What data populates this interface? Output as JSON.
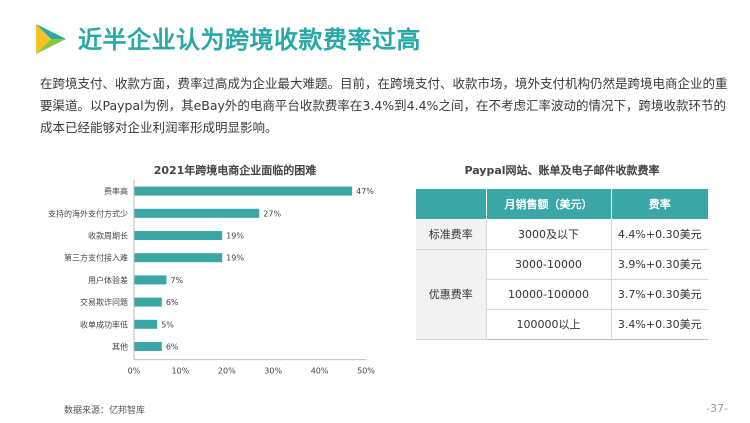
{
  "header": {
    "title": "近半企业认为跨境收款费率过高",
    "logo_colors": {
      "yellow": "#f5c324",
      "teal": "#2aa7a7",
      "green": "#8cc63f"
    }
  },
  "intro": "在跨境支付、收款方面，费率过高成为企业最大难题。目前，在跨境支付、收款市场，境外支付机构仍然是跨境电商企业的重要渠道。以Paypal为例，其eBay外的电商平台收款费率在3.4%到4.4%之间，在不考虑汇率波动的情况下，跨境收款环节的成本已经能够对企业利润率形成明显影响。",
  "chart_data": {
    "type": "bar",
    "orientation": "horizontal",
    "title": "2021年跨境电商企业面临的困难",
    "categories": [
      "费率高",
      "支持的海外支付方式少",
      "收款周期长",
      "第三方支付接入难",
      "用户体验差",
      "交易欺诈问题",
      "收单成功率低",
      "其他"
    ],
    "values": [
      47,
      27,
      19,
      19,
      7,
      6,
      5,
      6
    ],
    "value_labels": [
      "47%",
      "27%",
      "19%",
      "19%",
      "7%",
      "6%",
      "5%",
      "6%"
    ],
    "xlim": [
      0,
      50
    ],
    "xticks": [
      "0%",
      "10%",
      "20%",
      "30%",
      "40%",
      "50%"
    ],
    "xlabel": "",
    "ylabel": "",
    "grid": false,
    "bar_color": "#3aa6a6"
  },
  "table": {
    "title": "Paypal网站、账单及电子邮件收款费率",
    "headers": [
      "",
      "月销售额（美元）",
      "费率"
    ],
    "tiers": [
      {
        "name": "标准费率",
        "rows": [
          {
            "sales": "3000及以下",
            "rate": "4.4%+0.30美元"
          }
        ]
      },
      {
        "name": "优惠费率",
        "rows": [
          {
            "sales": "3000-10000",
            "rate": "3.9%+0.30美元"
          },
          {
            "sales": "10000-100000",
            "rate": "3.7%+0.30美元"
          },
          {
            "sales": "100000以上",
            "rate": "3.4%+0.30美元"
          }
        ]
      }
    ],
    "header_color": "#3aa6a6"
  },
  "footer": {
    "source": "数据来源：亿邦智库",
    "page_number": "-37-"
  }
}
